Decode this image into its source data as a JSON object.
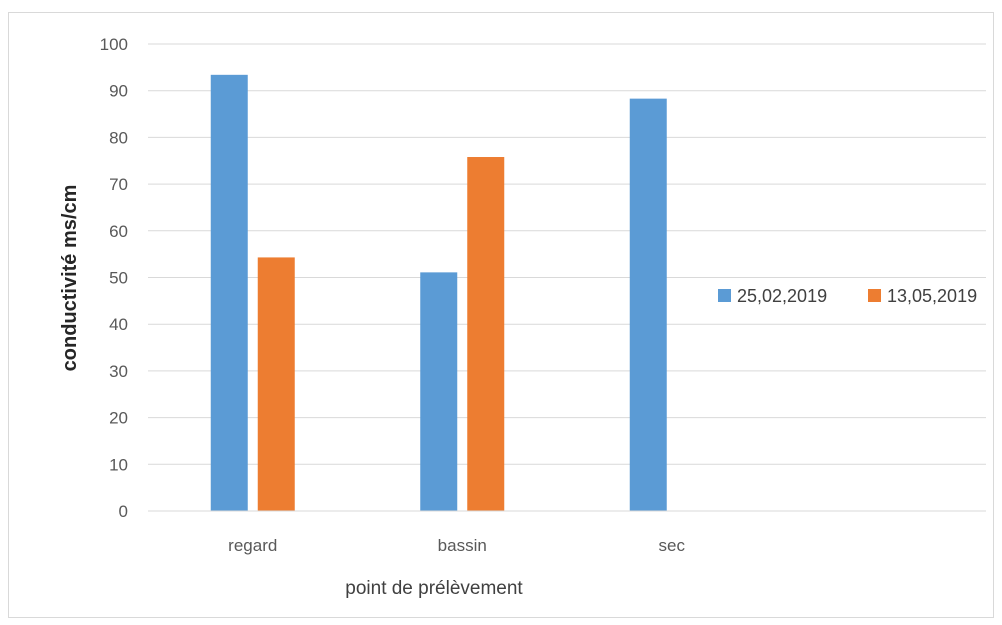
{
  "chart_data": {
    "type": "bar",
    "title": "",
    "xlabel": "point de prélèvement",
    "ylabel": "conductivité ms/cm",
    "categories": [
      "regard",
      "bassin",
      "sec",
      ""
    ],
    "series": [
      {
        "name": "25,02,2019",
        "color": "#5b9bd5",
        "values": [
          93.4,
          51.1,
          88.3,
          null
        ]
      },
      {
        "name": "13,05,2019",
        "color": "#ed7d31",
        "values": [
          54.3,
          75.8,
          null,
          null
        ]
      }
    ],
    "ylim": [
      0,
      100
    ],
    "yticks": [
      0,
      10,
      20,
      30,
      40,
      50,
      60,
      70,
      80,
      90,
      100
    ],
    "grid": true,
    "legend_position": "right"
  }
}
